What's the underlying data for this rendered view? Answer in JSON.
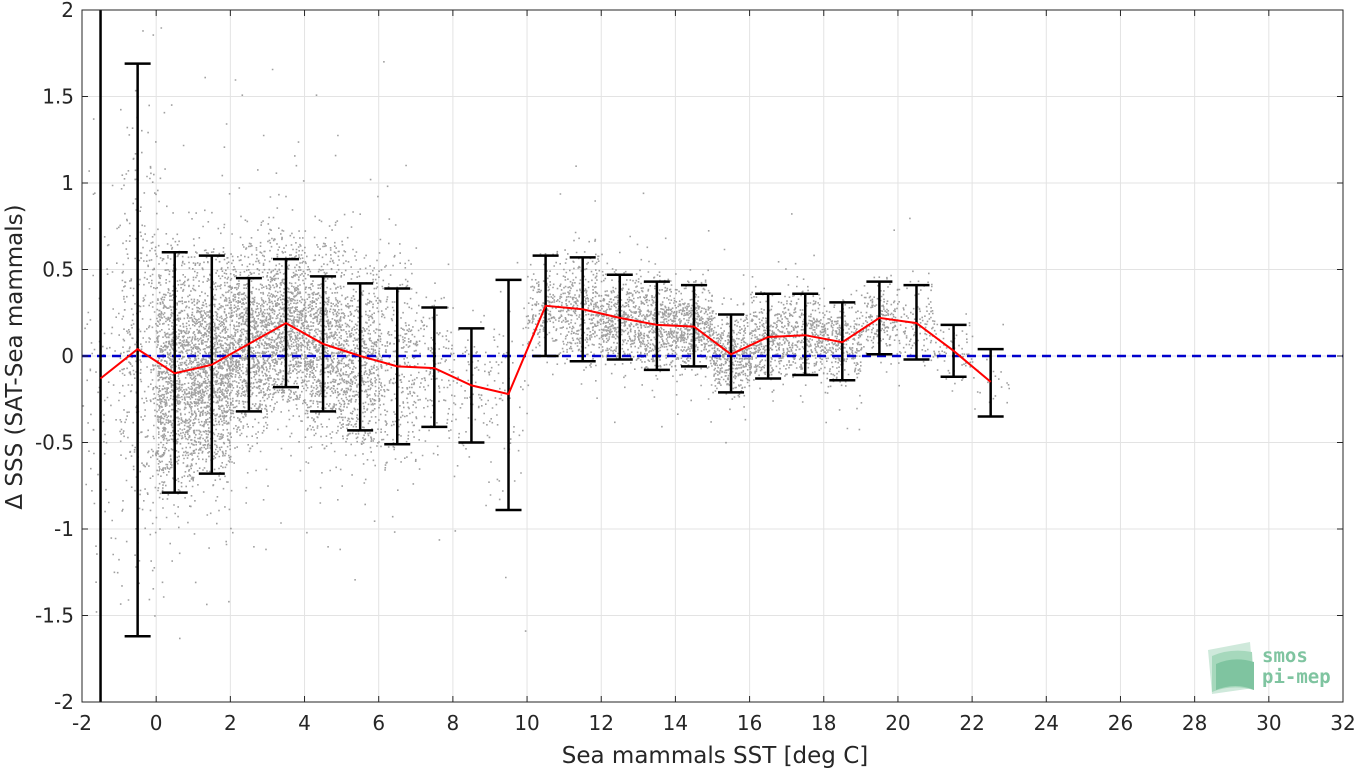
{
  "chart_data": {
    "type": "scatter",
    "title": "",
    "xlabel": "Sea mammals SST [deg C]",
    "ylabel": "Δ SSS (SAT-Sea mammals)",
    "xlim": [
      -2,
      32
    ],
    "ylim": [
      -2,
      2
    ],
    "xticks": [
      -2,
      0,
      2,
      4,
      6,
      8,
      10,
      12,
      14,
      16,
      18,
      20,
      22,
      24,
      26,
      28,
      30,
      32
    ],
    "yticks": [
      -2,
      -1.5,
      -1,
      -0.5,
      0,
      0.5,
      1,
      1.5,
      2
    ],
    "xtick_labels": [
      "-2",
      "0",
      "2",
      "4",
      "6",
      "8",
      "10",
      "12",
      "14",
      "16",
      "18",
      "20",
      "22",
      "24",
      "26",
      "28",
      "30",
      "32"
    ],
    "ytick_labels": [
      "-2",
      "-1.5",
      "-1",
      "-0.5",
      "0",
      "0.5",
      "1",
      "1.5",
      "2"
    ],
    "grid": true,
    "reference_line": {
      "y": 0,
      "color": "#0000cc",
      "style": "dashed"
    },
    "scatter_color": "#808080",
    "mean_line_color": "#ff0000",
    "errorbar_color": "#000000",
    "binned_stats": {
      "x": [
        -1.5,
        -0.5,
        0.5,
        1.5,
        2.5,
        3.5,
        4.5,
        5.5,
        6.5,
        7.5,
        8.5,
        9.5,
        10.5,
        11.5,
        12.5,
        13.5,
        14.5,
        15.5,
        16.5,
        17.5,
        18.5,
        19.5,
        20.5,
        21.5,
        22.5
      ],
      "mean": [
        -0.13,
        0.04,
        -0.1,
        -0.05,
        0.07,
        0.19,
        0.07,
        0.0,
        -0.06,
        -0.07,
        -0.17,
        -0.22,
        0.29,
        0.27,
        0.22,
        0.18,
        0.17,
        0.01,
        0.11,
        0.12,
        0.08,
        0.22,
        0.19,
        0.03,
        -0.15
      ],
      "lower": [
        -2.0,
        -1.62,
        -0.79,
        -0.68,
        -0.32,
        -0.18,
        -0.32,
        -0.43,
        -0.51,
        -0.41,
        -0.5,
        -0.89,
        0.0,
        -0.03,
        -0.02,
        -0.08,
        -0.06,
        -0.21,
        -0.13,
        -0.11,
        -0.14,
        0.01,
        -0.02,
        -0.12,
        -0.35
      ],
      "upper": [
        2.0,
        1.69,
        0.6,
        0.58,
        0.45,
        0.56,
        0.46,
        0.42,
        0.39,
        0.28,
        0.16,
        0.44,
        0.58,
        0.57,
        0.47,
        0.43,
        0.41,
        0.24,
        0.36,
        0.36,
        0.31,
        0.43,
        0.41,
        0.18,
        0.04
      ]
    },
    "scatter_density": {
      "x_centers": [
        -1.5,
        -0.5,
        0.5,
        1.5,
        2.5,
        3.5,
        4.5,
        5.5,
        6.5,
        7.5,
        8.5,
        9.5,
        10.5,
        11.5,
        12.5,
        13.5,
        14.5,
        15.5,
        16.5,
        17.5,
        18.5,
        19.5,
        20.5,
        21.5,
        22.5
      ],
      "counts": [
        90,
        380,
        1150,
        1250,
        950,
        900,
        850,
        650,
        320,
        150,
        90,
        70,
        220,
        360,
        420,
        470,
        480,
        420,
        360,
        340,
        300,
        200,
        120,
        60,
        20
      ],
      "spread": [
        0.6,
        0.6,
        0.34,
        0.3,
        0.26,
        0.25,
        0.26,
        0.28,
        0.3,
        0.22,
        0.2,
        0.3,
        0.14,
        0.15,
        0.13,
        0.13,
        0.12,
        0.11,
        0.12,
        0.12,
        0.11,
        0.11,
        0.11,
        0.08,
        0.08
      ]
    }
  },
  "logo": {
    "line1": "smos",
    "line2": "pi-mep"
  }
}
